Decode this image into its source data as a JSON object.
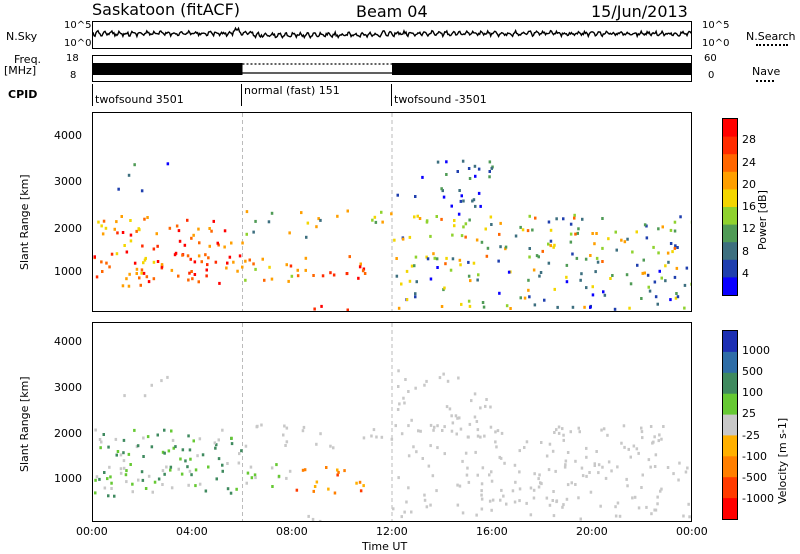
{
  "header": {
    "station": "Saskatoon (fitACF)",
    "beam": "Beam 04",
    "date": "15/Jun/2013"
  },
  "top_strip": {
    "nsky_label": "N.Sky",
    "nsky_ticks": [
      "10^5",
      "10^0"
    ],
    "nsearch_label": "N.Search",
    "nsearch_ticks": [
      "10^5",
      "10^0"
    ],
    "freq_label_1": "Freq.",
    "freq_label_2": "[MHz]",
    "freq_ticks": [
      "18",
      "8"
    ],
    "nave_label": "Nave",
    "nave_ticks": [
      "60",
      "0"
    ],
    "cpid_label": "CPID",
    "cpid_segments": [
      {
        "label": "twofsound 3501",
        "start_hour": 0,
        "end_hour": 6
      },
      {
        "label": "normal (fast) 151",
        "start_hour": 6,
        "end_hour": 12
      },
      {
        "label": "twofsound -3501",
        "start_hour": 12,
        "end_hour": 24
      }
    ]
  },
  "chart_data": [
    {
      "type": "heatmap",
      "title": "",
      "xlabel": "Time UT",
      "ylabel": "Slant Range [km]",
      "x_range_hours": [
        0,
        24
      ],
      "ylim": [
        180,
        4500
      ],
      "yticks": [
        1000,
        2000,
        3000,
        4000
      ],
      "colorbar": {
        "label": "Power [dB]",
        "ticks": [
          "4",
          "8",
          "12",
          "16",
          "20",
          "24",
          "28"
        ],
        "colors": [
          "#0a00ff",
          "#1f3fae",
          "#3d6f7f",
          "#4f9b56",
          "#8fd22e",
          "#f3d600",
          "#ff9f00",
          "#ff6600",
          "#ff2b00",
          "#ff0000"
        ]
      }
    },
    {
      "type": "heatmap",
      "title": "",
      "xlabel": "Time UT",
      "ylabel": "Slant Range [km]",
      "x_range_hours": [
        0,
        24
      ],
      "ylim": [
        180,
        4500
      ],
      "yticks": [
        1000,
        2000,
        3000,
        4000
      ],
      "colorbar": {
        "label": "Velocity [m s-1]",
        "ticks": [
          "1000",
          "500",
          "100",
          "25",
          "-25",
          "-100",
          "-500",
          "-1000"
        ],
        "colors": [
          "#1c2fb3",
          "#2e6da7",
          "#3f8a5f",
          "#66c933",
          "#c8c8c8",
          "#ffb000",
          "#ff7f00",
          "#ff3b00",
          "#ff0000"
        ]
      }
    }
  ],
  "x_axis": {
    "ticks": [
      "00:00",
      "04:00",
      "08:00",
      "12:00",
      "16:00",
      "20:00",
      "00:00"
    ],
    "label": "Time UT"
  }
}
